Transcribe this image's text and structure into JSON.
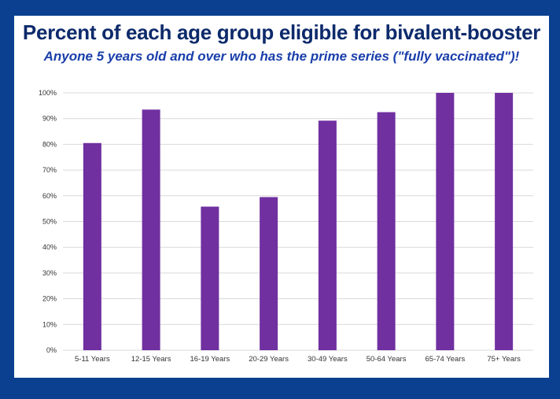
{
  "colors": {
    "background": "#0b3f8f",
    "panel": "#ffffff",
    "title": "#0d2a6b",
    "subtitle": "#1a3faa",
    "bar": "#7030a0",
    "grid": "#d9d9d9"
  },
  "chart_data": {
    "type": "bar",
    "title": "Percent of each age group eligible for bivalent-booster",
    "subtitle": "Anyone 5 years old and over who has the prime series (\"fully vaccinated\")!",
    "xlabel": "",
    "ylabel": "",
    "ylim": [
      0,
      100
    ],
    "yticks": [
      0,
      10,
      20,
      30,
      40,
      50,
      60,
      70,
      80,
      90,
      100
    ],
    "ytick_format": "percent",
    "grid": true,
    "legend": "none",
    "categories": [
      "5-11 Years",
      "12-15 Years",
      "16-19 Years",
      "20-29 Years",
      "30-49 Years",
      "50-64 Years",
      "65-74 Years",
      "75+ Years"
    ],
    "values": [
      80.5,
      93.5,
      55.8,
      59.5,
      89.2,
      92.5,
      100,
      100
    ]
  }
}
